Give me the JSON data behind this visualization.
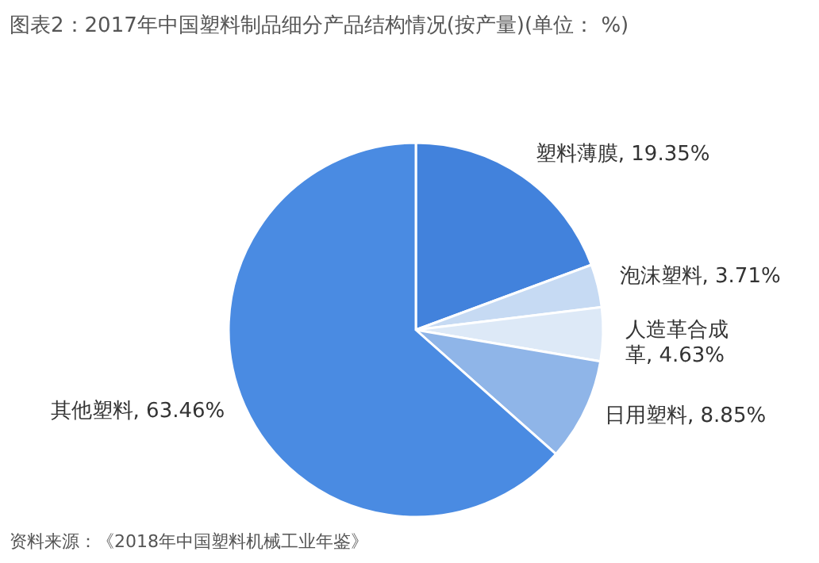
{
  "chart_data": {
    "type": "pie",
    "title": "图表2：2017年中国塑料制品细分产品结构情况(按产量)(单位： %)",
    "categories": [
      "塑料薄膜",
      "泡沫塑料",
      "人造革合成革",
      "日用塑料",
      "其他塑料"
    ],
    "value_labels": [
      "19.35%",
      "3.71%",
      "4.63%",
      "8.85%",
      "63.46%"
    ],
    "values": [
      19.35,
      3.71,
      4.63,
      8.85,
      63.46
    ],
    "colors": [
      "#4282dc",
      "#c6daf3",
      "#dde9f7",
      "#8fb5e8",
      "#4a8be2"
    ],
    "annotations": [
      "资料来源：《2018年中国塑料机械工业年鉴》"
    ]
  }
}
